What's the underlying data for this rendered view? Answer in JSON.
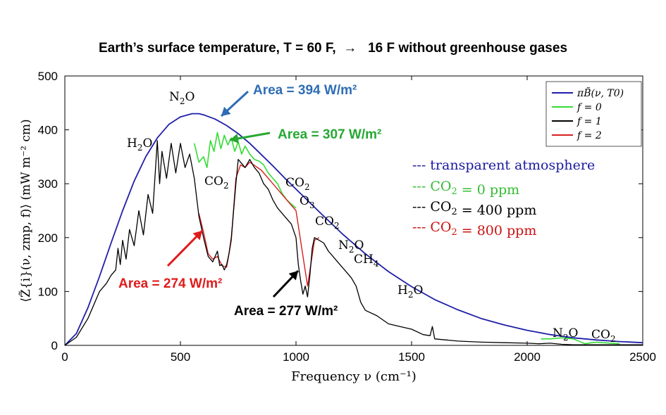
{
  "headline": "Earth’s surface temperature, T = 60 F,  →   16 F without greenhouse gases",
  "chart_data": {
    "type": "line",
    "xlabel": "Frequency ν (cm⁻¹)",
    "ylabel": "⟨Z̃{i}(ν, zmp, f)⟩ (mW m⁻² cm)",
    "xlim": [
      0,
      2500
    ],
    "ylim": [
      0,
      500
    ],
    "xticks": [
      0,
      500,
      1000,
      1500,
      2000,
      2500
    ],
    "yticks": [
      0,
      100,
      200,
      300,
      400,
      500
    ],
    "grid": false,
    "legend": {
      "placement": "top-right",
      "entries": [
        {
          "label": "πB̃(ν, T0)",
          "color": "#1f1fa8"
        },
        {
          "label": "f = 0",
          "color": "#33dd33"
        },
        {
          "label": "f = 1",
          "color": "#000000"
        },
        {
          "label": "f = 2",
          "color": "#d62020"
        }
      ]
    },
    "side_legend": [
      {
        "text": "--- transparent atmosphere",
        "color": "#1a1aa0"
      },
      {
        "text": "--- CO2 = 0 ppm",
        "color": "#33bb33"
      },
      {
        "text": "--- CO2 = 400 ppm",
        "color": "#000000"
      },
      {
        "text": "--- CO2 = 800 ppm",
        "color": "#cc1111"
      }
    ],
    "annotations": {
      "area_blue": {
        "text": "Area = 394 W/m²",
        "color": "#2e6db4"
      },
      "area_green": {
        "text": "Area = 307 W/m²",
        "color": "#27a833"
      },
      "area_red": {
        "text": "Area = 274 W/m²",
        "color": "#e01b1b"
      },
      "area_black": {
        "text": "Area = 277 W/m²",
        "color": "#000000"
      }
    },
    "gas_labels": [
      "N2O",
      "H2O",
      "CO2",
      "CO2",
      "O3",
      "CO2",
      "N2O",
      "CH4",
      "H2O",
      "N2O",
      "CO2"
    ],
    "series": [
      {
        "name": "πB̃(ν, T0)",
        "color": "#1f1fa8",
        "x": [
          0,
          50,
          100,
          150,
          200,
          250,
          300,
          350,
          400,
          450,
          500,
          550,
          580,
          600,
          650,
          700,
          750,
          800,
          850,
          900,
          950,
          1000,
          1100,
          1200,
          1300,
          1400,
          1500,
          1600,
          1700,
          1800,
          1900,
          2000,
          2100,
          2200,
          2300,
          2400,
          2500
        ],
        "y": [
          0,
          22,
          70,
          128,
          190,
          250,
          305,
          350,
          385,
          410,
          424,
          430,
          430,
          428,
          420,
          408,
          393,
          375,
          354,
          333,
          311,
          290,
          248,
          207,
          170,
          137,
          109,
          85,
          66,
          50,
          38,
          28,
          20,
          14,
          10,
          7,
          5
        ]
      },
      {
        "name": "f = 0",
        "color": "#33dd33",
        "x": [
          560,
          580,
          600,
          615,
          630,
          645,
          660,
          675,
          690,
          705,
          720,
          735,
          750,
          765,
          780,
          800,
          820,
          840,
          860,
          880,
          900,
          920,
          940,
          960,
          980,
          1000,
          2060,
          2100,
          2150,
          2200,
          2250,
          2280,
          2300,
          2330,
          2360,
          2400
        ],
        "y": [
          375,
          340,
          350,
          330,
          380,
          360,
          395,
          365,
          390,
          372,
          385,
          360,
          378,
          355,
          370,
          355,
          345,
          342,
          335,
          320,
          310,
          300,
          282,
          270,
          262,
          255,
          12,
          12,
          14,
          12,
          3,
          5,
          6,
          5,
          4,
          3
        ]
      },
      {
        "name": "f = 1",
        "color": "#000000",
        "x": [
          0,
          50,
          100,
          150,
          180,
          200,
          220,
          230,
          240,
          250,
          265,
          280,
          300,
          320,
          340,
          360,
          380,
          400,
          410,
          420,
          440,
          460,
          480,
          500,
          520,
          540,
          560,
          580,
          600,
          620,
          640,
          660,
          670,
          680,
          690,
          700,
          710,
          720,
          740,
          750,
          760,
          780,
          800,
          820,
          840,
          860,
          880,
          900,
          920,
          950,
          980,
          1000,
          1010,
          1020,
          1030,
          1040,
          1050,
          1060,
          1070,
          1080,
          1100,
          1120,
          1140,
          1160,
          1180,
          1200,
          1220,
          1240,
          1260,
          1280,
          1300,
          1350,
          1400,
          1450,
          1500,
          1550,
          1580,
          1590,
          1600,
          1650,
          1700,
          1800,
          1900,
          2000,
          2050,
          2100,
          2150,
          2200,
          2300,
          2400,
          2500
        ],
        "y": [
          0,
          15,
          50,
          100,
          115,
          130,
          140,
          180,
          150,
          195,
          160,
          215,
          185,
          250,
          205,
          280,
          245,
          380,
          300,
          360,
          310,
          375,
          320,
          375,
          330,
          355,
          310,
          240,
          200,
          165,
          155,
          175,
          148,
          150,
          140,
          150,
          170,
          200,
          300,
          345,
          340,
          330,
          345,
          330,
          320,
          300,
          290,
          270,
          255,
          240,
          225,
          200,
          150,
          120,
          95,
          110,
          90,
          130,
          180,
          200,
          195,
          190,
          175,
          165,
          155,
          145,
          135,
          125,
          110,
          80,
          65,
          55,
          40,
          35,
          30,
          20,
          18,
          35,
          12,
          10,
          8,
          6,
          5,
          4,
          3,
          4,
          2,
          1,
          1,
          1,
          1
        ]
      },
      {
        "name": "f = 2",
        "color": "#d62020",
        "x": [
          580,
          600,
          620,
          640,
          660,
          680,
          700,
          720,
          740,
          760,
          780,
          800,
          850,
          900,
          950,
          1000,
          1050,
          1080,
          1100
        ],
        "y": [
          245,
          210,
          170,
          160,
          165,
          148,
          145,
          195,
          310,
          335,
          330,
          340,
          325,
          300,
          275,
          250,
          110,
          195,
          200
        ]
      }
    ]
  }
}
